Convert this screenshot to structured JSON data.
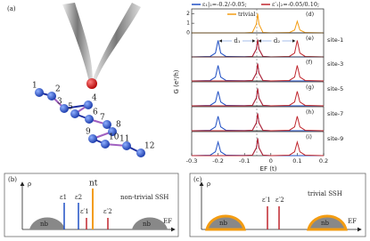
{
  "panels": {
    "a": {
      "label": "(a)",
      "site_numbers": [
        "1",
        "2",
        "3",
        "4",
        "5",
        "6",
        "7",
        "8",
        "9",
        "10",
        "11",
        "12"
      ]
    },
    "b": {
      "label": "(b)",
      "rho": "ρ",
      "nt": "nt",
      "nb_left": "nb",
      "nb_right": "nb",
      "e1": "ε1",
      "e2": "ε2",
      "ep1": "ε′1",
      "ep2": "ε′2",
      "phase": "non-trivial SSH",
      "ef": "EF"
    },
    "c": {
      "label": "(c)",
      "rho": "ρ",
      "nb_left": "nb",
      "nb_right": "nb",
      "ep1": "ε′1",
      "ep2": "ε′2",
      "phase": "trivial SSH",
      "ef": "EF"
    }
  },
  "axes": {
    "xlabel": "EF (t)",
    "ylabel": "G (e²/h)"
  },
  "chart_data": [
    {
      "type": "line",
      "panel_label": "(d)",
      "legend": "inside",
      "xlim": [
        -0.3,
        0.2
      ],
      "ylim": [
        0,
        2.3
      ],
      "yticks": [
        0,
        1,
        2
      ],
      "x": [
        -0.3,
        -0.23,
        -0.21,
        -0.2,
        -0.19,
        -0.17,
        -0.1,
        -0.07,
        -0.055,
        -0.05,
        -0.045,
        -0.03,
        0,
        0.07,
        0.09,
        0.1,
        0.11,
        0.13,
        0.2
      ],
      "series": [
        {
          "name": "trivial",
          "color": "#f39c12",
          "values": [
            0,
            0,
            0,
            0,
            0,
            0,
            0,
            0.05,
            0.9,
            2.0,
            0.9,
            0.05,
            0,
            0.03,
            0.3,
            1.2,
            0.3,
            0.03,
            0
          ]
        }
      ]
    },
    {
      "type": "line",
      "panel_label": "(e)",
      "annotation": "site-1",
      "legend": "above",
      "annotations": [
        "d₁",
        "d₂"
      ],
      "xlim": [
        -0.3,
        0.2
      ],
      "ylim": [
        0,
        2.3
      ],
      "x": [
        -0.3,
        -0.23,
        -0.21,
        -0.2,
        -0.19,
        -0.17,
        -0.1,
        -0.07,
        -0.055,
        -0.05,
        -0.045,
        -0.03,
        0,
        0.07,
        0.09,
        0.1,
        0.11,
        0.13,
        0.2
      ],
      "series": [
        {
          "name": "ε₁|₂=-0.2/-0.05;",
          "color": "#1f4fc4",
          "values": [
            0,
            0.05,
            0.4,
            1.7,
            0.4,
            0.05,
            0.02,
            0.05,
            0.8,
            1.8,
            0.8,
            0.05,
            0,
            0,
            0,
            0,
            0,
            0,
            0
          ]
        },
        {
          "name": "ε′₁|₂=-0.05/0.10;",
          "color": "#c0262d",
          "values": [
            0,
            0,
            0,
            0,
            0,
            0,
            0,
            0.05,
            0.8,
            1.8,
            0.8,
            0.05,
            0,
            0.05,
            0.4,
            1.7,
            0.4,
            0.05,
            0
          ]
        }
      ]
    },
    {
      "type": "line",
      "panel_label": "(f)",
      "annotation": "site-3",
      "xlim": [
        -0.3,
        0.2
      ],
      "ylim": [
        0,
        2.3
      ],
      "x": [
        -0.3,
        -0.23,
        -0.21,
        -0.2,
        -0.19,
        -0.17,
        -0.1,
        -0.07,
        -0.055,
        -0.05,
        -0.045,
        -0.03,
        0,
        0.07,
        0.09,
        0.1,
        0.11,
        0.13,
        0.2
      ],
      "series": [
        {
          "color": "#1f4fc4",
          "values": [
            0,
            0.05,
            0.4,
            1.6,
            0.4,
            0.05,
            0.02,
            0.05,
            0.8,
            1.8,
            0.8,
            0.05,
            0,
            0,
            0,
            0,
            0,
            0,
            0
          ]
        },
        {
          "color": "#c0262d",
          "values": [
            0,
            0,
            0,
            0,
            0,
            0,
            0,
            0.05,
            0.8,
            1.8,
            0.8,
            0.05,
            0,
            0.05,
            0.4,
            1.6,
            0.4,
            0.05,
            0
          ]
        }
      ]
    },
    {
      "type": "line",
      "panel_label": "(g)",
      "annotation": "site-5",
      "xlim": [
        -0.3,
        0.2
      ],
      "ylim": [
        0,
        2.3
      ],
      "x": [
        -0.3,
        -0.23,
        -0.21,
        -0.2,
        -0.19,
        -0.17,
        -0.1,
        -0.07,
        -0.055,
        -0.05,
        -0.045,
        -0.03,
        0,
        0.07,
        0.09,
        0.1,
        0.11,
        0.13,
        0.2
      ],
      "series": [
        {
          "color": "#1f4fc4",
          "values": [
            0,
            0.05,
            0.4,
            1.5,
            0.4,
            0.05,
            0.02,
            0.05,
            0.8,
            1.8,
            0.8,
            0.05,
            0,
            0,
            0,
            0,
            0,
            0,
            0
          ]
        },
        {
          "color": "#c0262d",
          "values": [
            0,
            0,
            0,
            0,
            0,
            0,
            0,
            0.05,
            0.8,
            1.8,
            0.8,
            0.05,
            0,
            0.05,
            0.4,
            1.5,
            0.4,
            0.05,
            0
          ]
        }
      ]
    },
    {
      "type": "line",
      "panel_label": "(h)",
      "annotation": "site-7",
      "xlim": [
        -0.3,
        0.2
      ],
      "ylim": [
        0,
        2.3
      ],
      "x": [
        -0.3,
        -0.23,
        -0.21,
        -0.2,
        -0.19,
        -0.17,
        -0.1,
        -0.07,
        -0.055,
        -0.05,
        -0.045,
        -0.03,
        0,
        0.07,
        0.09,
        0.1,
        0.11,
        0.13,
        0.2
      ],
      "series": [
        {
          "color": "#1f4fc4",
          "values": [
            0,
            0.05,
            0.4,
            1.5,
            0.4,
            0.05,
            0.02,
            0.05,
            0.8,
            1.8,
            0.8,
            0.05,
            0,
            0,
            0,
            0,
            0,
            0,
            0
          ]
        },
        {
          "color": "#c0262d",
          "values": [
            0,
            0,
            0,
            0,
            0,
            0,
            0,
            0.05,
            0.8,
            1.8,
            0.8,
            0.05,
            0,
            0.05,
            0.4,
            1.5,
            0.4,
            0.05,
            0
          ]
        }
      ]
    },
    {
      "type": "line",
      "panel_label": "(i)",
      "annotation": "site-9",
      "xlim": [
        -0.3,
        0.2
      ],
      "ylim": [
        0,
        2.3
      ],
      "xticks": [
        -0.3,
        -0.2,
        -0.1,
        0,
        0.1,
        0.2
      ],
      "x": [
        -0.3,
        -0.23,
        -0.21,
        -0.2,
        -0.19,
        -0.17,
        -0.1,
        -0.07,
        -0.055,
        -0.05,
        -0.045,
        -0.03,
        0,
        0.07,
        0.09,
        0.1,
        0.11,
        0.13,
        0.2
      ],
      "series": [
        {
          "color": "#1f4fc4",
          "values": [
            0,
            0.05,
            0.4,
            1.4,
            0.4,
            0.05,
            0.02,
            0.05,
            0.8,
            1.8,
            0.8,
            0.05,
            0,
            0,
            0,
            0,
            0,
            0,
            0
          ]
        },
        {
          "color": "#c0262d",
          "values": [
            0,
            0,
            0,
            0,
            0,
            0,
            0,
            0.05,
            0.8,
            1.8,
            0.8,
            0.05,
            0,
            0.05,
            0.4,
            1.4,
            0.4,
            0.05,
            0
          ]
        }
      ]
    }
  ]
}
